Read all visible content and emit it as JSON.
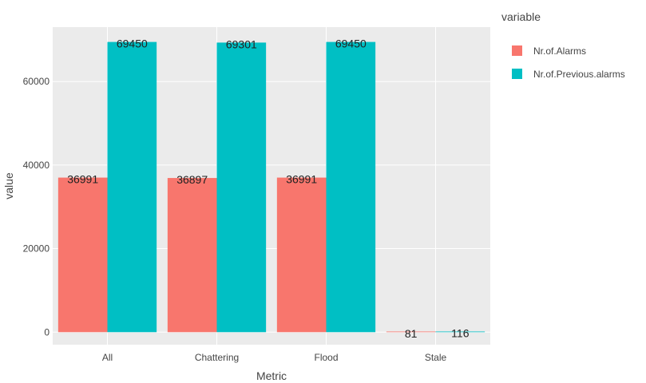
{
  "chart_data": {
    "type": "bar",
    "categories": [
      "All",
      "Chattering",
      "Flood",
      "Stale"
    ],
    "series": [
      {
        "name": "Nr.of.Alarms",
        "color": "#F8766D",
        "values": [
          36991,
          36897,
          36991,
          81
        ]
      },
      {
        "name": "Nr.of.Previous.alarms",
        "color": "#00BFC4",
        "values": [
          69450,
          69301,
          69450,
          116
        ]
      }
    ],
    "xlabel": "Metric",
    "ylabel": "value",
    "ylim": [
      -3000,
      73000
    ],
    "yticks": [
      0,
      20000,
      40000,
      60000
    ],
    "ytick_labels": [
      "0",
      "20000",
      "40000",
      "60000"
    ],
    "legend": {
      "title": "variable",
      "placement": "right"
    },
    "grid": true,
    "background_color": "#EBEBEB",
    "grid_color": "#FFFFFF"
  }
}
